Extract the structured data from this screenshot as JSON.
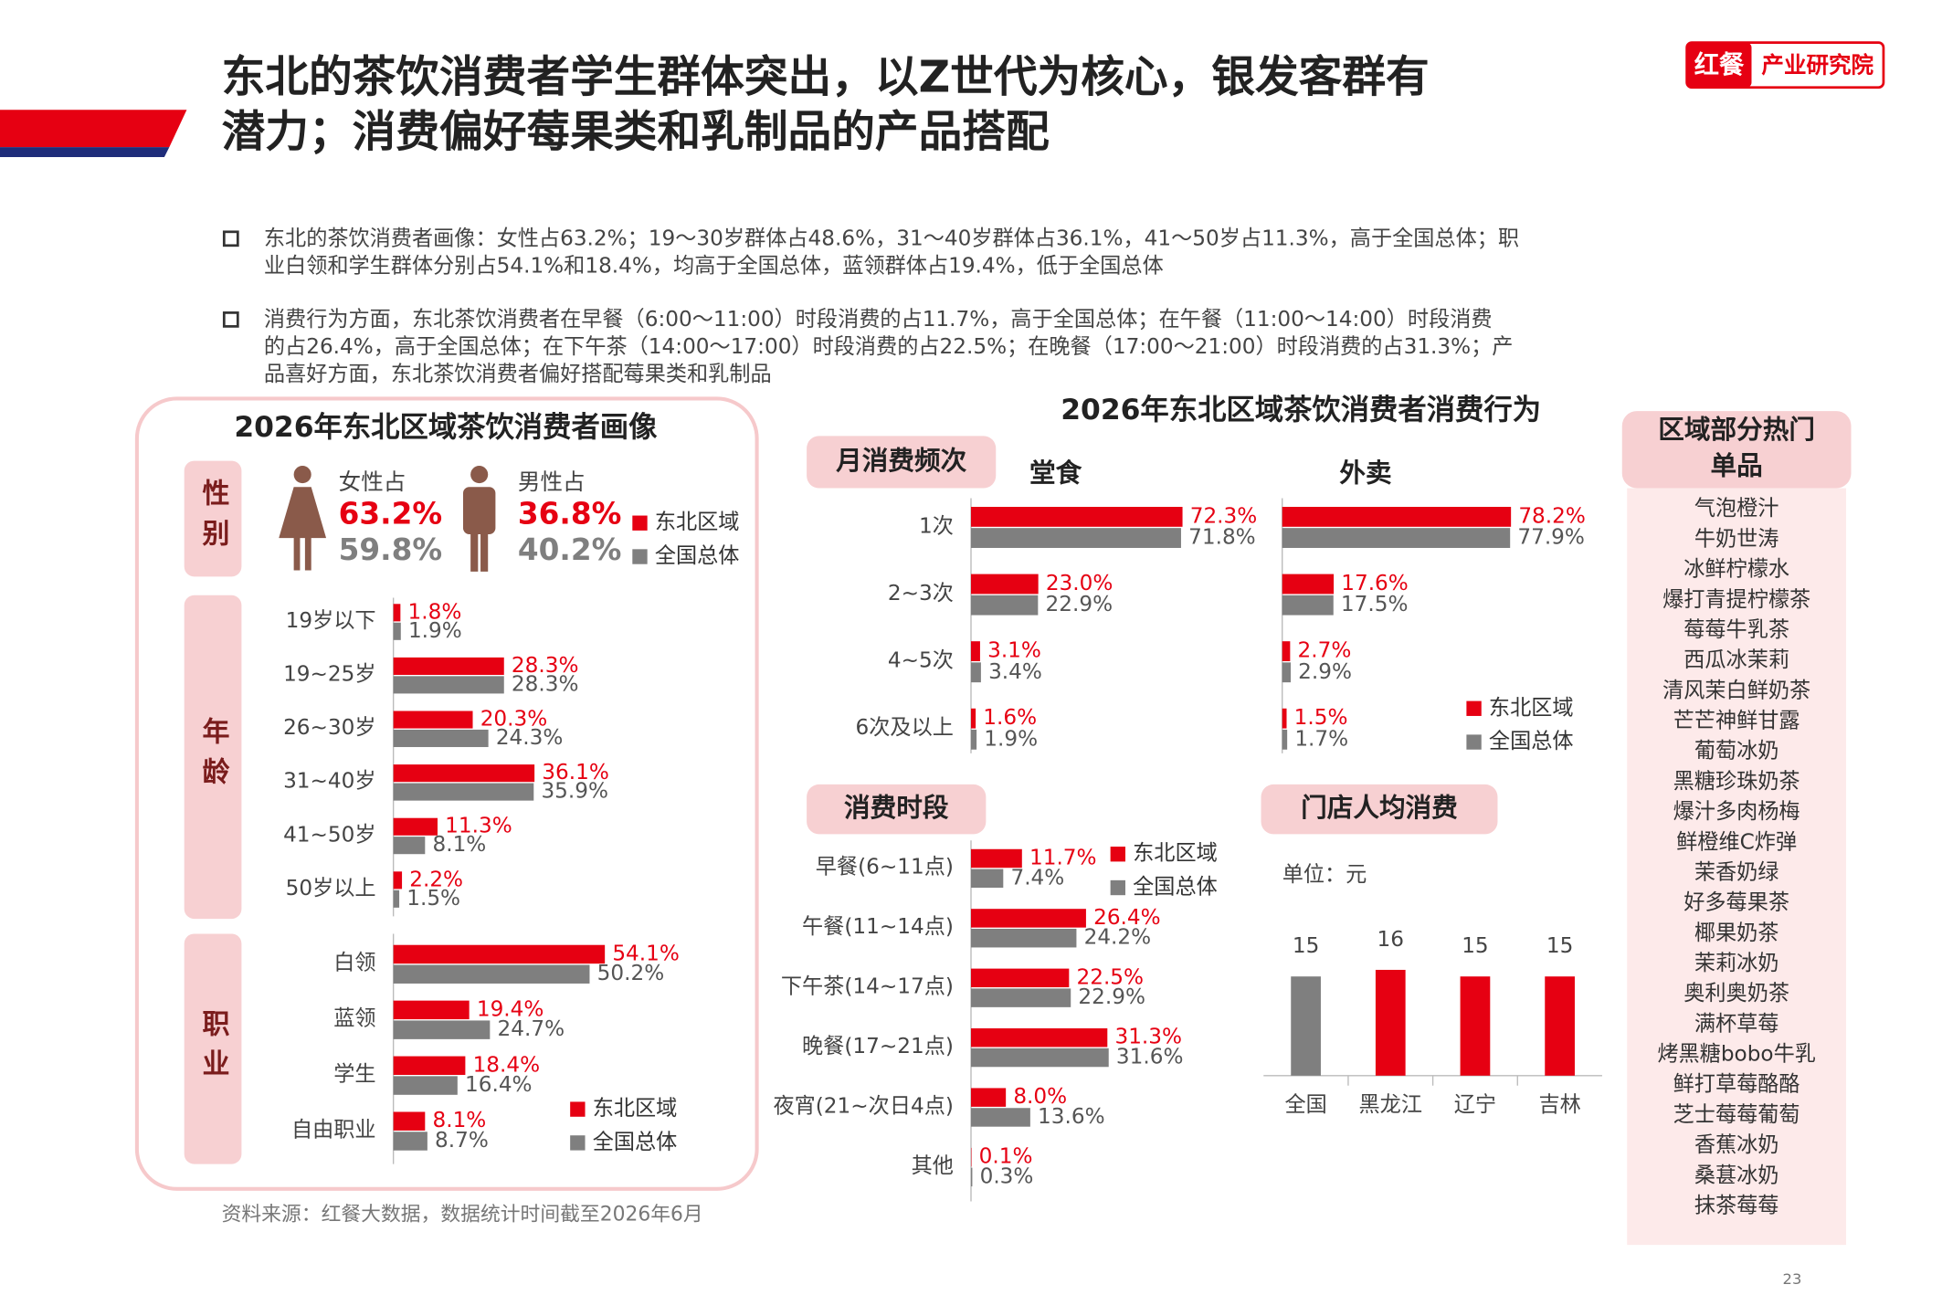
{
  "header": {
    "title_lines": [
      "东北的茶饮消费者学生群体突出，以Z世代为核心，银发客群有",
      "潜力；消费偏好莓果类和乳制品的产品搭配"
    ],
    "logo_brand": "红餐",
    "logo_text": "产业研究院"
  },
  "bullets": [
    [
      "东北的茶饮消费者画像：女性占63.2%；19～30岁群体占48.6%，31～40岁群体占36.1%，41～50岁占11.3%，高于全国总体；职",
      "业白领和学生群体分别占54.1%和18.4%，均高于全国总体，蓝领群体占19.4%，低于全国总体"
    ],
    [
      "消费行为方面，东北茶饮消费者在早餐（6:00～11:00）时段消费的占11.7%，高于全国总体；在午餐（11:00～14:00）时段消费",
      "的占26.4%，高于全国总体；在下午茶（14:00～17:00）时段消费的占22.5%；在晚餐（17:00～21:00）时段消费的占31.3%；产",
      "品喜好方面，东北茶饮消费者偏好搭配莓果类和乳制品"
    ]
  ],
  "left_panel": {
    "title": "2026年东北区域茶饮消费者画像"
  },
  "right_panel": {
    "title": "2026年东北区域茶饮消费者消费行为"
  },
  "chart_data": [
    {
      "type": "icon-stat",
      "title": "性别",
      "categories": [
        "女性占",
        "男性占"
      ],
      "series": [
        {
          "name": "东北区域",
          "color": "#e60012",
          "values": [
            63.2,
            36.8
          ],
          "value_labels": [
            "63.2%",
            "36.8%"
          ]
        },
        {
          "name": "全国总体",
          "color": "#7f7f7f",
          "values": [
            59.8,
            40.2
          ],
          "value_labels": [
            "59.8%",
            "40.2%"
          ]
        }
      ]
    },
    {
      "type": "bar",
      "orientation": "horizontal",
      "title": "年龄",
      "categories": [
        "19岁以下",
        "19~25岁",
        "26~30岁",
        "31~40岁",
        "41~50岁",
        "50岁以上"
      ],
      "series": [
        {
          "color": "#e60012",
          "values": [
            1.8,
            28.3,
            20.3,
            36.1,
            11.3,
            2.2
          ],
          "value_labels": [
            "1.8%",
            "28.3%",
            "20.3%",
            "36.1%",
            "11.3%",
            "2.2%"
          ]
        },
        {
          "color": "#7f7f7f",
          "values": [
            1.9,
            28.3,
            24.3,
            35.9,
            8.1,
            1.5
          ],
          "value_labels": [
            "1.9%",
            "28.3%",
            "24.3%",
            "35.9%",
            "8.1%",
            "1.5%"
          ]
        }
      ]
    },
    {
      "type": "bar",
      "orientation": "horizontal",
      "title": "职业",
      "categories": [
        "白领",
        "蓝领",
        "学生",
        "自由职业"
      ],
      "series": [
        {
          "name": "东北区域",
          "color": "#e60012",
          "values": [
            54.1,
            19.4,
            18.4,
            8.1
          ],
          "value_labels": [
            "54.1%",
            "19.4%",
            "18.4%",
            "8.1%"
          ]
        },
        {
          "name": "全国总体",
          "color": "#7f7f7f",
          "values": [
            50.2,
            24.7,
            16.4,
            8.7
          ],
          "value_labels": [
            "50.2%",
            "24.7%",
            "16.4%",
            "8.7%"
          ]
        }
      ]
    },
    {
      "type": "bar",
      "orientation": "horizontal",
      "section": "月消费频次",
      "title": "堂食",
      "categories": [
        "1次",
        "2~3次",
        "4~5次",
        "6次及以上"
      ],
      "series": [
        {
          "color": "#e60012",
          "values": [
            72.3,
            23.0,
            3.1,
            1.6
          ],
          "value_labels": [
            "72.3%",
            "23.0%",
            "3.1%",
            "1.6%"
          ]
        },
        {
          "color": "#7f7f7f",
          "values": [
            71.8,
            22.9,
            3.4,
            1.9
          ],
          "value_labels": [
            "71.8%",
            "22.9%",
            "3.4%",
            "1.9%"
          ]
        }
      ]
    },
    {
      "type": "bar",
      "orientation": "horizontal",
      "title": "外卖",
      "series": [
        {
          "name": "东北区域",
          "color": "#e60012",
          "values": [
            78.2,
            17.6,
            2.7,
            1.5
          ],
          "value_labels": [
            "78.2%",
            "17.6%",
            "2.7%",
            "1.5%"
          ]
        },
        {
          "name": "全国总体",
          "color": "#7f7f7f",
          "values": [
            77.9,
            17.5,
            2.9,
            1.7
          ],
          "value_labels": [
            "77.9%",
            "17.5%",
            "2.9%",
            "1.7%"
          ]
        }
      ]
    },
    {
      "type": "bar",
      "orientation": "horizontal",
      "title": "消费时段",
      "categories": [
        "早餐(6~11点)",
        "午餐(11~14点)",
        "下午茶(14~17点)",
        "晚餐(17~21点)",
        "夜宵(21~次日4点)",
        "其他"
      ],
      "series": [
        {
          "name": "东北区域",
          "color": "#e60012",
          "values": [
            11.7,
            26.4,
            22.5,
            31.3,
            8.0,
            0.1
          ],
          "value_labels": [
            "11.7%",
            "26.4%",
            "22.5%",
            "31.3%",
            "8.0%",
            "0.1%"
          ]
        },
        {
          "name": "全国总体",
          "color": "#7f7f7f",
          "values": [
            7.4,
            24.2,
            22.9,
            31.6,
            13.6,
            0.3
          ],
          "value_labels": [
            "7.4%",
            "24.2%",
            "22.9%",
            "31.6%",
            "13.6%",
            "0.3%"
          ]
        }
      ]
    },
    {
      "type": "column",
      "title": "门店人均消费",
      "unit": "单位：元",
      "categories": [
        "全国",
        "黑龙江",
        "辽宁",
        "吉林"
      ],
      "values": [
        15,
        16,
        15,
        15
      ],
      "colors": [
        "#7f7f7f",
        "#e60012",
        "#e60012",
        "#e60012"
      ]
    }
  ],
  "hot_items": {
    "title_lines": [
      "区域部分热门",
      "单品"
    ],
    "items": [
      "气泡橙汁",
      "牛奶世涛",
      "冰鲜柠檬水",
      "爆打青提柠檬茶",
      "莓莓牛乳茶",
      "西瓜冰茉莉",
      "清风茉白鲜奶茶",
      "芒芒神鲜甘露",
      "葡萄冰奶",
      "黑糖珍珠奶茶",
      "爆汁多肉杨梅",
      "鲜橙维C炸弹",
      "茉香奶绿",
      "好多莓果茶",
      "椰果奶茶",
      "茉莉冰奶",
      "奥利奥奶茶",
      "满杯草莓",
      "烤黑糖bobo牛乳",
      "鲜打草莓酪酪",
      "芝士莓莓葡萄",
      "香蕉冰奶",
      "桑葚冰奶",
      "抹茶莓莓"
    ]
  },
  "source": "资料来源：红餐大数据，数据统计时间截至2026年6月",
  "page_number": "23"
}
